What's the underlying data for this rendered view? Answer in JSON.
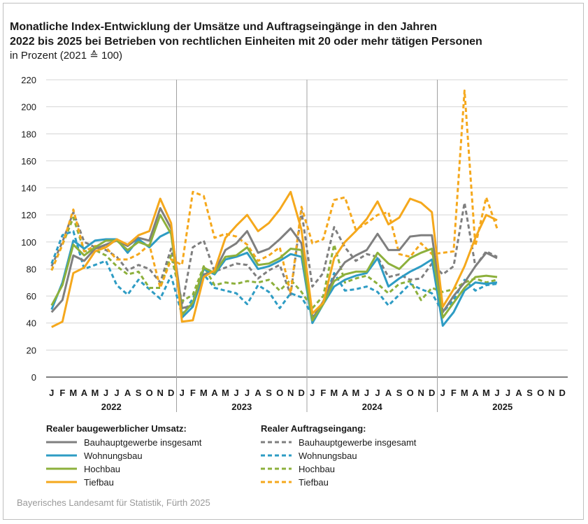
{
  "title_line1": "Monatliche Index-Entwicklung der Umsätze und Auftragseingänge in den Jahren",
  "title_line2": "2022 bis 2025 bei Betrieben von rechtlichen Einheiten mit 20 oder mehr tätigen Personen",
  "subtitle": "in Prozent (2021 ≙ 100)",
  "source": "Bayerisches Landesamt für Statistik, Fürth 2025",
  "legend": {
    "left_heading": "Realer baugewerblicher Umsatz:",
    "right_heading": "Realer Auftragseingang:"
  },
  "chart_data": {
    "type": "line",
    "ylim": [
      0,
      220
    ],
    "yticks": [
      0,
      20,
      40,
      60,
      80,
      100,
      120,
      140,
      160,
      180,
      200,
      220
    ],
    "grid": true,
    "years": [
      "2022",
      "2023",
      "2024",
      "2025"
    ],
    "month_labels": [
      "J",
      "F",
      "M",
      "A",
      "M",
      "J",
      "J",
      "A",
      "S",
      "O",
      "N",
      "D"
    ],
    "colors": {
      "grey": "#7f7f7f",
      "blue": "#2e9cc4",
      "green": "#8db03c",
      "orange": "#f5a81c"
    },
    "series": [
      {
        "name": "Bauhauptgewerbe insgesamt",
        "group": "umsatz",
        "color": "#7f7f7f",
        "dashed": false,
        "values": [
          48,
          57,
          90,
          86,
          95,
          98,
          101,
          97,
          103,
          101,
          125,
          110,
          51,
          53,
          76,
          78,
          94,
          99,
          108,
          92,
          95,
          102,
          110,
          99,
          43,
          56,
          74,
          85,
          90,
          94,
          106,
          94,
          94,
          104,
          105,
          105,
          48,
          60,
          70,
          82,
          92,
          88
        ]
      },
      {
        "name": "Wohnungsbau",
        "group": "umsatz",
        "color": "#2e9cc4",
        "dashed": false,
        "values": [
          50,
          70,
          101,
          95,
          101,
          102,
          102,
          92,
          102,
          96,
          104,
          108,
          44,
          52,
          80,
          76,
          87,
          89,
          92,
          80,
          82,
          86,
          91,
          89,
          40,
          54,
          67,
          72,
          75,
          77,
          88,
          67,
          73,
          78,
          82,
          87,
          38,
          48,
          64,
          70,
          69,
          70
        ]
      },
      {
        "name": "Hochbau",
        "group": "umsatz",
        "color": "#8db03c",
        "dashed": false,
        "values": [
          53,
          68,
          98,
          90,
          96,
          101,
          101,
          94,
          100,
          97,
          120,
          106,
          46,
          55,
          81,
          77,
          89,
          90,
          96,
          83,
          84,
          88,
          95,
          94,
          42,
          54,
          71,
          76,
          78,
          78,
          92,
          84,
          80,
          88,
          92,
          95,
          44,
          55,
          66,
          74,
          75,
          74
        ]
      },
      {
        "name": "Tiefbau",
        "group": "umsatz",
        "color": "#f5a81c",
        "dashed": false,
        "values": [
          37,
          41,
          77,
          81,
          93,
          96,
          102,
          98,
          105,
          108,
          132,
          114,
          41,
          42,
          74,
          79,
          103,
          112,
          120,
          108,
          114,
          124,
          137,
          109,
          47,
          55,
          88,
          100,
          108,
          117,
          130,
          113,
          118,
          132,
          129,
          122,
          52,
          65,
          82,
          103,
          120,
          116
        ]
      },
      {
        "name": "Bauhauptgewerbe insgesamt",
        "group": "auftrag",
        "color": "#7f7f7f",
        "dashed": true,
        "values": [
          82,
          100,
          122,
          100,
          96,
          94,
          89,
          79,
          83,
          80,
          70,
          95,
          53,
          96,
          101,
          78,
          81,
          84,
          83,
          73,
          79,
          83,
          61,
          123,
          67,
          77,
          111,
          96,
          86,
          91,
          89,
          74,
          76,
          72,
          73,
          84,
          76,
          82,
          129,
          82,
          93,
          89
        ]
      },
      {
        "name": "Wohnungsbau",
        "group": "auftrag",
        "color": "#2e9cc4",
        "dashed": true,
        "values": [
          84,
          105,
          108,
          80,
          83,
          86,
          68,
          61,
          72,
          65,
          58,
          75,
          46,
          58,
          76,
          66,
          64,
          62,
          54,
          68,
          63,
          51,
          62,
          59,
          46,
          55,
          77,
          64,
          65,
          67,
          63,
          53,
          61,
          69,
          65,
          62,
          48,
          57,
          72,
          64,
          68,
          69
        ]
      },
      {
        "name": "Hochbau",
        "group": "auftrag",
        "color": "#8db03c",
        "dashed": true,
        "values": [
          79,
          98,
          118,
          93,
          94,
          90,
          82,
          76,
          78,
          66,
          66,
          90,
          56,
          61,
          82,
          68,
          70,
          69,
          71,
          70,
          72,
          64,
          72,
          63,
          51,
          60,
          98,
          70,
          73,
          75,
          69,
          62,
          69,
          71,
          57,
          66,
          63,
          65,
          70,
          73,
          70,
          72
        ]
      },
      {
        "name": "Tiefbau",
        "group": "auftrag",
        "color": "#f5a81c",
        "dashed": true,
        "values": [
          79,
          98,
          124,
          93,
          97,
          96,
          87,
          87,
          91,
          98,
          66,
          87,
          83,
          137,
          134,
          103,
          106,
          104,
          98,
          86,
          90,
          96,
          62,
          126,
          99,
          102,
          131,
          133,
          109,
          114,
          120,
          122,
          91,
          89,
          99,
          91,
          92,
          93,
          212,
          97,
          133,
          110
        ]
      }
    ]
  }
}
